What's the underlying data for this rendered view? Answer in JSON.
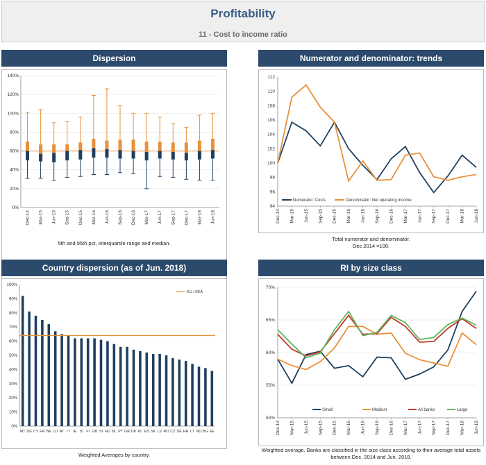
{
  "header": {
    "title": "Profitability",
    "subtitle": "11 - Cost to income ratio"
  },
  "colors": {
    "navy": "#1f3f5f",
    "orange": "#e8913a",
    "red": "#c0392b",
    "green": "#5cb85c",
    "panel_title_bg": "#2c4a6b"
  },
  "panels": {
    "dispersion": {
      "title": "Dispersion",
      "caption": "5th and 95th pct, interquartile range and median."
    },
    "trends": {
      "title": "Numerator and denominator: trends",
      "caption_lines": [
        "Total numerator and denominator.",
        "Dec 2014 =100."
      ]
    },
    "country": {
      "title": "Country dispersion (as of Jun. 2018)",
      "caption": "Weighted Averages by country."
    },
    "size": {
      "title": "RI by size class",
      "caption_lines": [
        "Weighted average. Banks are classified in the size class according to their average total assets",
        "between Dec. 2014 and Jun. 2018."
      ]
    }
  },
  "chart_data": [
    {
      "type": "boxplot",
      "categories": [
        "Dec-14",
        "Mar-15",
        "Jun-15",
        "Sep-15",
        "Dec-15",
        "Mar-16",
        "Jun-16",
        "Sep-16",
        "Dec-16",
        "Mar-17",
        "Jun-17",
        "Sep-17",
        "Dec-17",
        "Mar-18",
        "Jun-18"
      ],
      "p5": [
        31,
        31,
        29,
        32,
        33,
        35,
        35,
        37,
        36,
        20,
        33,
        32,
        30,
        29,
        29
      ],
      "q1": [
        50,
        49,
        48,
        50,
        51,
        53,
        53,
        52,
        52,
        50,
        52,
        51,
        50,
        51,
        52
      ],
      "median": [
        60,
        57,
        58,
        60,
        61,
        63,
        62,
        61,
        60,
        59,
        60,
        59,
        58,
        60,
        61
      ],
      "q3": [
        70,
        67,
        67,
        67,
        69,
        73,
        71,
        72,
        72,
        70,
        70,
        69,
        69,
        71,
        73
      ],
      "p95": [
        101,
        104,
        90,
        91,
        96,
        119,
        126,
        108,
        100,
        100,
        96,
        89,
        85,
        98,
        100
      ],
      "reference_line": 60,
      "ylim": [
        0,
        140
      ],
      "yticks": [
        "0%",
        "20%",
        "40%",
        "60%",
        "80%",
        "100%",
        "120%",
        "140%"
      ]
    },
    {
      "type": "line",
      "categories": [
        "Dec-14",
        "Mar-15",
        "Jun-15",
        "Sep-15",
        "Dec-15",
        "Mar-16",
        "Jun-16",
        "Sep-16",
        "Dec-16",
        "Mar-17",
        "Jun-17",
        "Sep-17",
        "Dec-17",
        "Mar-18",
        "Jun-18"
      ],
      "series": [
        {
          "name": "Numerator: Costs",
          "color": "#1f3f5f",
          "values": [
            100,
            105.7,
            104.5,
            102.4,
            105.7,
            102.0,
            99.7,
            97.7,
            100.6,
            102.3,
            98.7,
            95.9,
            98.2,
            101.1,
            99.4
          ]
        },
        {
          "name": "Denominator: Net operating income",
          "color": "#e8913a",
          "values": [
            100,
            109.2,
            110.9,
            107.8,
            105.7,
            97.5,
            100.3,
            97.6,
            97.7,
            101.1,
            101.4,
            98.1,
            97.6,
            98.1,
            98.4
          ]
        }
      ],
      "ylim": [
        94,
        112
      ],
      "yticks": [
        "94",
        "96",
        "98",
        "100",
        "102",
        "104",
        "106",
        "108",
        "110",
        "112"
      ],
      "legend_position": "bottom-left"
    },
    {
      "type": "bar",
      "categories": [
        "MT",
        "DE",
        "CY",
        "FR",
        "BE",
        "LU",
        "AT",
        "IT",
        "IE",
        "IS",
        "FI",
        "GB",
        "SI",
        "HU",
        "NL",
        "PT",
        "GR",
        "DK",
        "PL",
        "ES",
        "SK",
        "LV",
        "RO",
        "CZ",
        "SE",
        "HR",
        "LT",
        "NO",
        "BG",
        "EE"
      ],
      "values": [
        92,
        81,
        78,
        75,
        72,
        67,
        65,
        64,
        62,
        62,
        62,
        62,
        61,
        60,
        58,
        56,
        56,
        54,
        53,
        52,
        51,
        51,
        50,
        48,
        47,
        46,
        44,
        42,
        41,
        39
      ],
      "reference": {
        "name": "EU / EEA",
        "value": 64
      },
      "ylim": [
        0,
        100
      ],
      "yticks": [
        "0%",
        "10%",
        "20%",
        "30%",
        "40%",
        "50%",
        "60%",
        "70%",
        "80%",
        "90%",
        "100%"
      ],
      "legend_position": "top-right"
    },
    {
      "type": "line",
      "categories": [
        "Dec-14",
        "Mar-15",
        "Jun-15",
        "Sep-15",
        "Dec-15",
        "Mar-16",
        "Jun-16",
        "Sep-16",
        "Dec-16",
        "Mar-17",
        "Jun-17",
        "Sep-17",
        "Dec-17",
        "Mar-18",
        "Jun-18"
      ],
      "series": [
        {
          "name": "Small",
          "color": "#1f3f5f",
          "values": [
            59.0,
            55.3,
            59.7,
            60.2,
            57.6,
            58.0,
            56.3,
            59.3,
            59.2,
            55.9,
            56.7,
            57.8,
            60.4,
            66.3,
            69.4
          ]
        },
        {
          "name": "Medium",
          "color": "#e8913a",
          "values": [
            59.0,
            58.0,
            57.4,
            58.6,
            60.7,
            64.0,
            64.0,
            62.8,
            63.0,
            59.9,
            58.9,
            58.4,
            57.9,
            63.0,
            61.2
          ]
        },
        {
          "name": "All banks",
          "color": "#c0392b",
          "values": [
            62.8,
            60.5,
            59.5,
            60.1,
            62.9,
            65.7,
            62.8,
            62.9,
            65.4,
            64.0,
            61.6,
            61.7,
            63.7,
            65.2,
            63.7
          ]
        },
        {
          "name": "Large",
          "color": "#5cb85c",
          "values": [
            63.5,
            61.3,
            59.2,
            59.9,
            63.5,
            66.3,
            62.6,
            63.1,
            65.7,
            64.6,
            62.0,
            62.3,
            64.3,
            65.3,
            64.2
          ]
        }
      ],
      "ylim": [
        50,
        70
      ],
      "yticks": [
        "50%",
        "55%",
        "60%",
        "65%",
        "70%"
      ],
      "legend_position": "bottom"
    }
  ]
}
